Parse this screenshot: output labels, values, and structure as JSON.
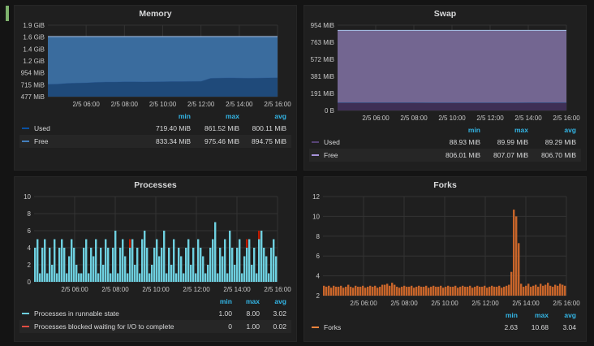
{
  "panels": {
    "memory": {
      "title": "Memory",
      "headers": [
        "min",
        "max",
        "avg"
      ],
      "legend": [
        {
          "name": "Used",
          "color": "#0a50a1",
          "min": "719.40 MiB",
          "max": "861.52 MiB",
          "avg": "800.11 MiB"
        },
        {
          "name": "Free",
          "color": "#447ebc",
          "min": "833.34 MiB",
          "max": "975.46 MiB",
          "avg": "894.75 MiB"
        }
      ]
    },
    "swap": {
      "title": "Swap",
      "headers": [
        "min",
        "max",
        "avg"
      ],
      "legend": [
        {
          "name": "Used",
          "color": "#584477",
          "min": "88.93 MiB",
          "max": "89.99 MiB",
          "avg": "89.29 MiB"
        },
        {
          "name": "Free",
          "color": "#a794da",
          "min": "806.01 MiB",
          "max": "807.07 MiB",
          "avg": "806.70 MiB"
        }
      ]
    },
    "processes": {
      "title": "Processes",
      "headers": [
        "min",
        "max",
        "avg"
      ],
      "legend": [
        {
          "name": "Processes in runnable state",
          "color": "#6ed0e0",
          "min": "1.00",
          "max": "8.00",
          "avg": "3.02"
        },
        {
          "name": "Processes blocked waiting for I/O to complete",
          "color": "#e24d42",
          "min": "0",
          "max": "1.00",
          "avg": "0.02"
        }
      ]
    },
    "forks": {
      "title": "Forks",
      "headers": [
        "min",
        "max",
        "avg"
      ],
      "legend": [
        {
          "name": "Forks",
          "color": "#ef843c",
          "min": "2.63",
          "max": "10.68",
          "avg": "3.04"
        }
      ]
    }
  },
  "chart_data": [
    {
      "id": "memory",
      "type": "area",
      "stacked": true,
      "x_start": "2/5 04:00",
      "x_end": "2/5 16:00",
      "x_ticks": [
        "2/5 06:00",
        "2/5 08:00",
        "2/5 10:00",
        "2/5 12:00",
        "2/5 14:00",
        "2/5 16:00"
      ],
      "y_ticks": [
        "477 MiB",
        "715 MiB",
        "954 MiB",
        "1.2 GiB",
        "1.4 GiB",
        "1.6 GiB",
        "1.9 GiB"
      ],
      "ylim_mib": [
        477,
        1907
      ],
      "grid": true,
      "series": [
        {
          "name": "Used",
          "color": "#1f4a7a",
          "values_mib": [
            730,
            735,
            750,
            755,
            760,
            770,
            775,
            775,
            780,
            780,
            778,
            780,
            782,
            785,
            785,
            788,
            790,
            850,
            855,
            858,
            855,
            852,
            855,
            858,
            860
          ]
        },
        {
          "name": "Free",
          "color": "#3a6c9e",
          "values_mib": [
            950,
            945,
            930,
            925,
            920,
            910,
            905,
            905,
            900,
            900,
            902,
            900,
            898,
            895,
            895,
            892,
            890,
            830,
            825,
            822,
            825,
            828,
            825,
            822,
            820
          ]
        }
      ]
    },
    {
      "id": "swap",
      "type": "area",
      "stacked": true,
      "x_start": "2/5 04:00",
      "x_end": "2/5 16:00",
      "x_ticks": [
        "2/5 06:00",
        "2/5 08:00",
        "2/5 10:00",
        "2/5 12:00",
        "2/5 14:00",
        "2/5 16:00"
      ],
      "y_ticks": [
        "0 B",
        "191 MiB",
        "381 MiB",
        "572 MiB",
        "763 MiB",
        "954 MiB"
      ],
      "ylim_mib": [
        0,
        954
      ],
      "grid": true,
      "series": [
        {
          "name": "Used",
          "color": "#3e2f55",
          "values_mib": [
            89.9,
            89.8,
            89.5,
            89.3,
            89.2,
            89.1,
            89.0,
            88.9,
            89.0,
            89.1,
            89.2,
            89.3,
            89.3
          ]
        },
        {
          "name": "Free",
          "color": "#736691",
          "values_mib": [
            806.0,
            806.1,
            806.4,
            806.6,
            806.7,
            806.8,
            806.9,
            807.0,
            806.9,
            806.8,
            806.7,
            806.6,
            806.6
          ]
        }
      ]
    },
    {
      "id": "processes",
      "type": "bar",
      "stacked": true,
      "x_start": "2/5 04:00",
      "x_end": "2/5 16:00",
      "x_ticks": [
        "2/5 06:00",
        "2/5 08:00",
        "2/5 10:00",
        "2/5 12:00",
        "2/5 14:00",
        "2/5 16:00"
      ],
      "y_ticks": [
        "0",
        "2",
        "4",
        "6",
        "8",
        "10"
      ],
      "ylim": [
        0,
        10
      ],
      "grid": true,
      "series": [
        {
          "name": "Processes in runnable state",
          "color": "#6ed0e0",
          "values": [
            4,
            5,
            1,
            4,
            5,
            1,
            4,
            2,
            5,
            1,
            4,
            5,
            4,
            1,
            3,
            5,
            4,
            2,
            1,
            1,
            4,
            5,
            1,
            4,
            3,
            5,
            1,
            4,
            2,
            5,
            4,
            1,
            4,
            6,
            1,
            4,
            5,
            3,
            1,
            4,
            5,
            2,
            4,
            1,
            5,
            6,
            4,
            1,
            2,
            4,
            5,
            3,
            4,
            6,
            1,
            4,
            2,
            5,
            1,
            4,
            3,
            1,
            4,
            5,
            2,
            4,
            1,
            5,
            4,
            3,
            1,
            2,
            4,
            5,
            7,
            1,
            4,
            3,
            5,
            1,
            6,
            4,
            2,
            4,
            5,
            1,
            3,
            4,
            5,
            2,
            4,
            1,
            5,
            6,
            4,
            3,
            1,
            4,
            5,
            3
          ]
        },
        {
          "name": "Processes blocked waiting for I/O to complete",
          "color": "#bf1b00",
          "values": [
            0,
            0,
            0,
            0,
            0,
            0,
            0,
            0,
            0,
            0,
            0,
            0,
            0,
            0,
            0,
            0,
            0,
            0,
            0,
            0,
            0,
            0,
            0,
            0,
            0,
            0,
            0,
            0,
            0,
            0,
            0,
            0,
            0,
            0,
            0,
            0,
            0,
            0,
            0,
            1,
            0,
            0,
            0,
            0,
            0,
            0,
            0,
            0,
            0,
            0,
            0,
            0,
            0,
            0,
            0,
            0,
            0,
            0,
            0,
            0,
            0,
            0,
            0,
            0,
            0,
            0,
            0,
            0,
            0,
            0,
            0,
            0,
            0,
            0,
            0,
            0,
            0,
            0,
            0,
            0,
            0,
            0,
            0,
            0,
            0,
            0,
            0,
            1,
            0,
            0,
            0,
            0,
            1,
            0,
            0,
            0,
            0,
            0,
            0,
            0
          ]
        }
      ]
    },
    {
      "id": "forks",
      "type": "bar",
      "x_start": "2/5 04:00",
      "x_end": "2/5 16:00",
      "x_ticks": [
        "2/5 06:00",
        "2/5 08:00",
        "2/5 10:00",
        "2/5 12:00",
        "2/5 14:00",
        "2/5 16:00"
      ],
      "y_ticks": [
        "2",
        "4",
        "6",
        "8",
        "10",
        "12"
      ],
      "ylim": [
        2,
        12
      ],
      "grid": true,
      "series": [
        {
          "name": "Forks",
          "color": "#c8652a",
          "values": [
            3.0,
            2.9,
            3.0,
            2.8,
            3.0,
            2.9,
            2.9,
            3.0,
            2.8,
            2.9,
            3.1,
            2.9,
            2.8,
            3.0,
            2.9,
            2.9,
            3.0,
            2.8,
            2.9,
            3.0,
            2.9,
            3.0,
            2.8,
            2.9,
            3.1,
            3.1,
            3.2,
            3.0,
            3.3,
            3.1,
            2.9,
            2.8,
            2.9,
            3.0,
            2.9,
            2.9,
            3.0,
            2.8,
            2.9,
            3.0,
            2.9,
            2.9,
            3.0,
            2.8,
            2.9,
            3.0,
            2.9,
            2.9,
            3.0,
            2.8,
            2.9,
            3.0,
            2.9,
            2.9,
            3.0,
            2.8,
            2.9,
            3.0,
            2.9,
            2.9,
            3.0,
            2.8,
            2.9,
            3.0,
            2.9,
            2.9,
            3.0,
            2.8,
            2.9,
            3.0,
            2.9,
            2.9,
            3.0,
            2.8,
            2.9,
            3.0,
            3.1,
            4.4,
            10.68,
            10.0,
            7.3,
            3.2,
            2.9,
            3.0,
            3.2,
            2.9,
            3.0,
            3.1,
            2.9,
            3.2,
            3.0,
            3.1,
            3.3,
            3.0,
            2.9,
            3.1,
            3.0,
            3.2,
            3.1,
            3.0
          ]
        }
      ]
    }
  ]
}
